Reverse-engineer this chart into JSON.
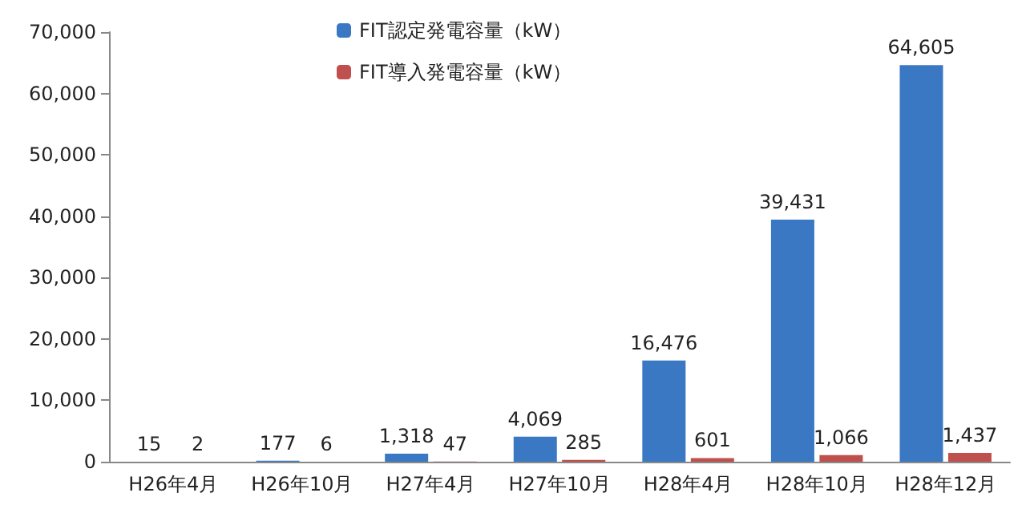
{
  "chart_data": {
    "type": "bar",
    "categories": [
      "H26年4月",
      "H26年10月",
      "H27年4月",
      "H27年10月",
      "H28年4月",
      "H28年10月",
      "H28年12月"
    ],
    "series": [
      {
        "name": "FIT認定発電容量（kW）",
        "color": "#3a78c3",
        "values": [
          15,
          177,
          1318,
          4069,
          16476,
          39431,
          64605
        ],
        "value_labels": [
          "15",
          "177",
          "1,318",
          "4,069",
          "16,476",
          "39,431",
          "64,605"
        ]
      },
      {
        "name": "FIT導入発電容量（kW）",
        "color": "#c0504d",
        "values": [
          2,
          6,
          47,
          285,
          601,
          1066,
          1437
        ],
        "value_labels": [
          "2",
          "6",
          "47",
          "285",
          "601",
          "1,066",
          "1,437"
        ]
      }
    ],
    "ylim": [
      0,
      70000
    ],
    "yticks": [
      0,
      {
        "value": 10000,
        "label": "10,000"
      },
      {
        "value": 20000,
        "label": "20,000"
      },
      {
        "value": 30000,
        "label": "30,000"
      },
      {
        "value": 40000,
        "label": "40,000"
      },
      {
        "value": 50000,
        "label": "50,000"
      },
      {
        "value": 60000,
        "label": "60,000"
      },
      {
        "value": 70000,
        "label": "70,000"
      }
    ],
    "grid": false,
    "legend": "top left"
  }
}
